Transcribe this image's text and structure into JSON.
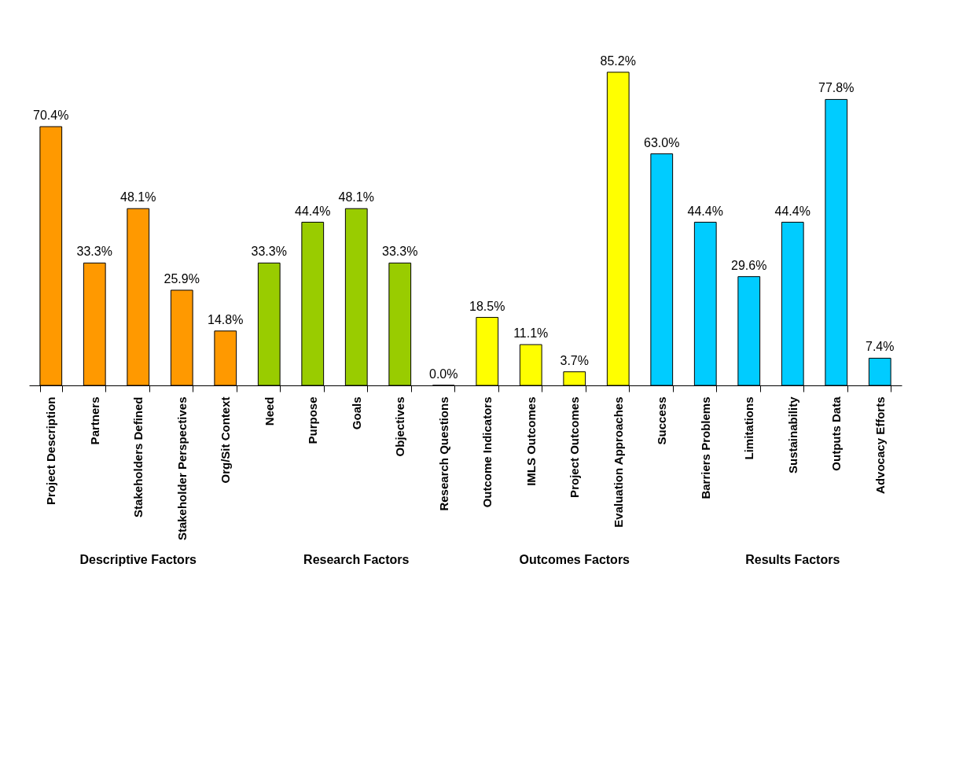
{
  "chart_data": {
    "type": "bar",
    "categories": [
      "Project Description",
      "Partners",
      "Stakeholders Defined",
      "Stakeholder Perspectives",
      "Org/Sit Context",
      "Need",
      "Purpose",
      "Goals",
      "Objectives",
      "Research Questions",
      "Outcome Indicators",
      "IMLS Outcomes",
      "Project Outcomes",
      "Evaluation Approaches",
      "Success",
      "Barriers Problems",
      "Limitations",
      "Sustainability",
      "Outputs  Data",
      "Advocacy Efforts"
    ],
    "values": [
      70.4,
      33.3,
      48.1,
      25.9,
      14.8,
      33.3,
      44.4,
      48.1,
      33.3,
      0.0,
      18.5,
      11.1,
      3.7,
      85.2,
      63.0,
      44.4,
      29.6,
      44.4,
      77.8,
      7.4
    ],
    "value_labels": [
      "70.4%",
      "33.3%",
      "48.1%",
      "25.9%",
      "14.8%",
      "33.3%",
      "44.4%",
      "48.1%",
      "33.3%",
      "0.0%",
      "18.5%",
      "11.1%",
      "3.7%",
      "85.2%",
      "63.0%",
      "44.4%",
      "29.6%",
      "44.4%",
      "77.8%",
      "7.4%"
    ],
    "colors": [
      "#ff9900",
      "#ff9900",
      "#ff9900",
      "#ff9900",
      "#ff9900",
      "#99cc00",
      "#99cc00",
      "#99cc00",
      "#99cc00",
      "#ffff00",
      "#ffff00",
      "#ffff00",
      "#ffff00",
      "#ffff00",
      "#00ccff",
      "#00ccff",
      "#00ccff",
      "#00ccff",
      "#00ccff",
      "#00ccff"
    ],
    "annotations": [
      "Descriptive Factors",
      "Research Factors",
      "Outcomes Factors",
      "Results Factors"
    ],
    "grid": false
  }
}
